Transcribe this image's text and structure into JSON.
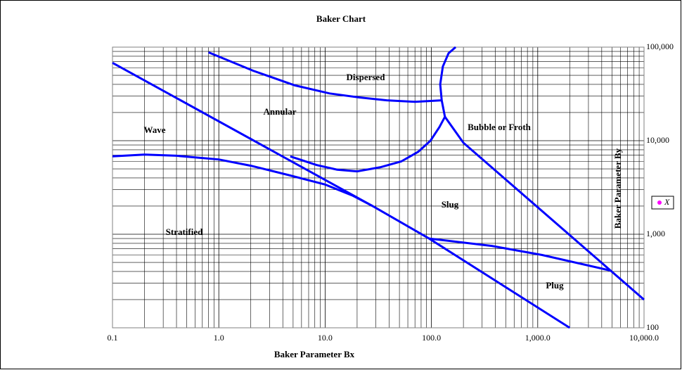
{
  "chart_data": {
    "type": "line",
    "title": "Baker Chart",
    "x_label": "Baker Parameter Bx",
    "y_label": "Baker Parameter By",
    "log_x": true,
    "log_y": true,
    "grid": true,
    "minor_grid": true,
    "legend": "right",
    "xlim": [
      0.1,
      10000
    ],
    "ylim": [
      100,
      100000
    ],
    "xticks": [
      0.1,
      {
        "value": 1,
        "label": "1.0"
      },
      {
        "value": 10,
        "label": "10.0"
      },
      {
        "value": 100,
        "label": "100.0"
      },
      {
        "value": 1000,
        "label": "1,000.0"
      },
      {
        "value": 10000,
        "label": "10,000.0"
      }
    ],
    "yticks": [
      100,
      {
        "value": 1000,
        "label": "1,000"
      },
      {
        "value": 10000,
        "label": "10,000"
      },
      {
        "value": 100000,
        "label": "100,000"
      }
    ],
    "series": [
      {
        "color": "#0000ff",
        "x": [
          0.1,
          0.2,
          0.4,
          1,
          2,
          4.5,
          10,
          18,
          28
        ],
        "values": [
          6800,
          7100,
          6900,
          6300,
          5400,
          4300,
          3400,
          2600,
          2000
        ]
      },
      {
        "color": "#0000ff",
        "x": [
          0.1,
          28,
          95,
          2000
        ],
        "values": [
          68000,
          2000,
          900,
          100
        ]
      },
      {
        "color": "#0000ff",
        "x": [
          0.8,
          2.1,
          5.2,
          11,
          21,
          38,
          70,
          125
        ],
        "values": [
          88000,
          56000,
          39000,
          32000,
          29000,
          27000,
          26000,
          27000
        ]
      },
      {
        "color": "#0000ff",
        "x": [
          4.7,
          8.3,
          13,
          20,
          33,
          52,
          75,
          98,
          119,
          134,
          125,
          121,
          128,
          145,
          169
        ],
        "values": [
          6800,
          5500,
          4900,
          4700,
          5200,
          6000,
          7600,
          10000,
          14000,
          18000,
          27000,
          40000,
          62000,
          86000,
          100000
        ]
      },
      {
        "color": "#0000ff",
        "x": [
          134,
          200,
          10000
        ],
        "values": [
          18000,
          9500,
          200
        ]
      },
      {
        "color": "#0000ff",
        "x": [
          95,
          370,
          1100,
          4800
        ],
        "values": [
          900,
          750,
          600,
          410
        ]
      },
      {
        "name": "X",
        "color": "#ff00ff",
        "x": [],
        "values": []
      }
    ],
    "annotations": [
      "Dispersed",
      "Annular",
      "Wave",
      "Bubble or Froth",
      "Slug",
      "Stratified",
      "Plug"
    ]
  }
}
